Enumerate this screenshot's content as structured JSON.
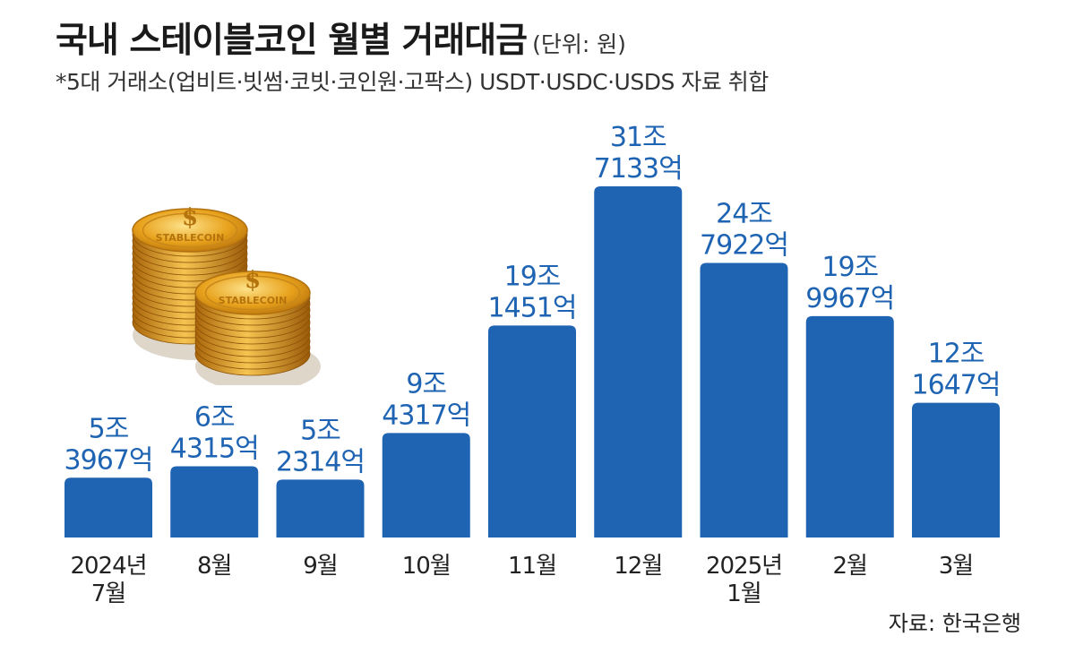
{
  "title": "국내 스테이블코인 월별 거래대금",
  "unit": "(단위: 원)",
  "subtitle": "*5대 거래소(업비트·빗썸·코빗·코인원·고팍스) USDT·USDC·USDS 자료 취합",
  "source": "자료: 한국은행",
  "colors": {
    "bar": "#1f64b3",
    "value_text": "#1f64b3",
    "axis_text": "#222222",
    "coin": "#e8a21c"
  },
  "icons": [
    "stablecoin-stack-icon"
  ],
  "coin_stamp": "STABLECOIN",
  "chart_data": {
    "type": "bar",
    "categories": [
      "2024년\n7월",
      "8월",
      "9월",
      "10월",
      "11월",
      "12월",
      "2025년\n1월",
      "2월",
      "3월"
    ],
    "values": [
      53967,
      64315,
      52314,
      94317,
      191451,
      317133,
      247922,
      199967,
      121647
    ],
    "value_unit": "억원",
    "labels": [
      [
        "5조",
        "3967억"
      ],
      [
        "6조",
        "4315억"
      ],
      [
        "5조",
        "2314억"
      ],
      [
        "9조",
        "4317억"
      ],
      [
        "19조",
        "1451억"
      ],
      [
        "31조",
        "7133억"
      ],
      [
        "24조",
        "7922억"
      ],
      [
        "19조",
        "9967억"
      ],
      [
        "12조",
        "1647억"
      ]
    ],
    "title": "국내 스테이블코인 월별 거래대금",
    "xlabel": "",
    "ylabel": "",
    "grid": false,
    "legend": "none"
  }
}
